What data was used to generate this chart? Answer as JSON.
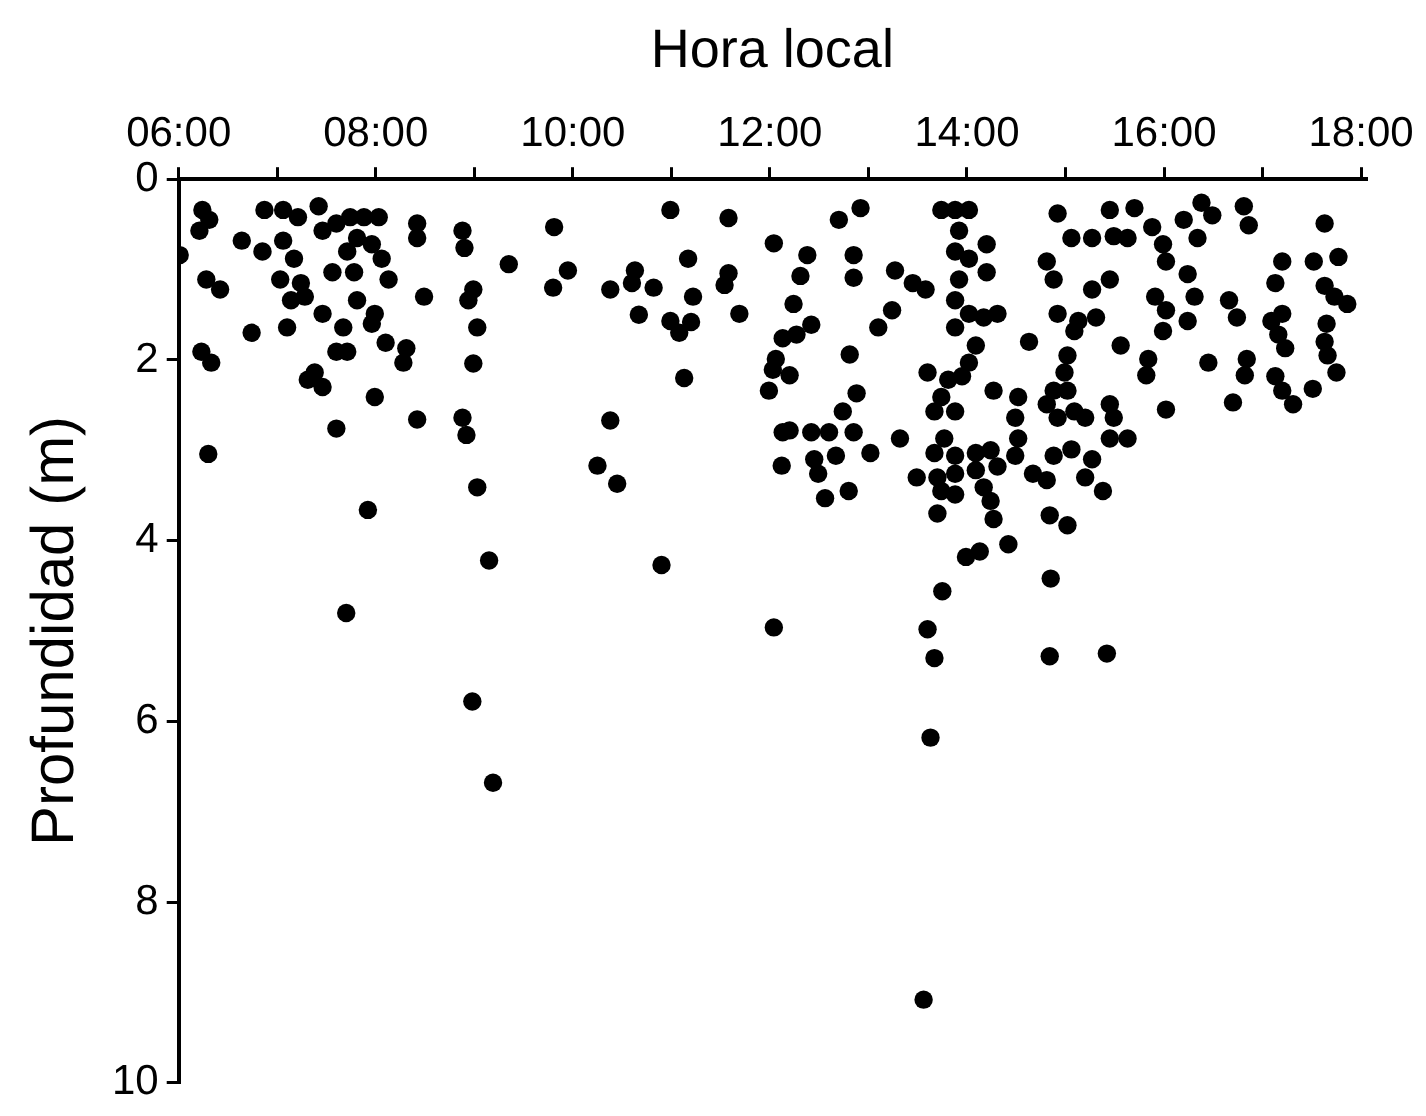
{
  "chart_data": {
    "type": "scatter",
    "xlabel": "Hora local",
    "ylabel": "Profundidad (m)",
    "xlim": [
      6,
      18.05
    ],
    "xticks": [
      {
        "value": 6,
        "label": "06:00"
      },
      {
        "value": 7,
        "label": null
      },
      {
        "value": 8,
        "label": "08:00"
      },
      {
        "value": 9,
        "label": null
      },
      {
        "value": 10,
        "label": "10:00"
      },
      {
        "value": 11,
        "label": null
      },
      {
        "value": 12,
        "label": "12:00"
      },
      {
        "value": 13,
        "label": null
      },
      {
        "value": 14,
        "label": "14:00"
      },
      {
        "value": 15,
        "label": null
      },
      {
        "value": 16,
        "label": "16:00"
      },
      {
        "value": 17,
        "label": null
      },
      {
        "value": 18,
        "label": "18:00"
      }
    ],
    "ylim": [
      10,
      0
    ],
    "yticks": [
      0,
      2,
      4,
      6,
      8,
      10
    ],
    "grid": false,
    "legend": false,
    "marker": "circle",
    "color": "#000000",
    "x": [
      6.01,
      6.24,
      6.31,
      6.21,
      6.28,
      6.42,
      6.23,
      6.33,
      6.3,
      6.87,
      7.06,
      7.21,
      7.42,
      6.64,
      6.85,
      7.06,
      7.17,
      7.46,
      7.6,
      7.74,
      7.88,
      8.03,
      7.81,
      7.96,
      7.71,
      8.06,
      7.03,
      7.24,
      7.56,
      7.78,
      8.13,
      7.14,
      7.28,
      7.1,
      7.46,
      7.67,
      7.81,
      7.99,
      7.96,
      6.74,
      7.6,
      7.71,
      8.1,
      8.31,
      8.28,
      7.38,
      7.31,
      7.46,
      7.99,
      7.6,
      7.92,
      7.7,
      8.42,
      8.42,
      8.88,
      8.9,
      8.49,
      8.99,
      8.94,
      9.03,
      8.99,
      8.42,
      8.88,
      8.92,
      9.03,
      9.15,
      8.98,
      9.19,
      9.81,
      9.35,
      9.95,
      9.8,
      10.38,
      10.63,
      10.6,
      10.82,
      10.67,
      10.99,
      11.17,
      11.22,
      10.99,
      11.08,
      11.2,
      11.13,
      11.58,
      11.58,
      11.54,
      11.69,
      12.04,
      10.38,
      10.25,
      10.45,
      10.9,
      12.13,
      12.03,
      11.99,
      12.13,
      12.12,
      12.04,
      13.6,
      13.75,
      13.67,
      14.84,
      15.42,
      14.85,
      13.63,
      13.56,
      12.7,
      12.92,
      12.38,
      12.31,
      12.85,
      12.85,
      12.24,
      12.42,
      12.27,
      12.06,
      12.2,
      12.81,
      13.27,
      13.45,
      13.58,
      13.24,
      13.1,
      12.88,
      12.74,
      12.2,
      12.42,
      12.6,
      12.85,
      12.45,
      12.67,
      12.49,
      13.02,
      12.56,
      12.8,
      13.32,
      13.74,
      13.88,
      14.02,
      13.92,
      13.88,
      14.02,
      14.2,
      13.92,
      14.2,
      13.88,
      14.02,
      13.88,
      14.17,
      14.31,
      14.09,
      14.02,
      13.6,
      13.81,
      13.95,
      13.74,
      13.88,
      13.67,
      14.27,
      13.77,
      13.67,
      13.88,
      14.09,
      14.24,
      13.49,
      13.7,
      13.88,
      14.09,
      14.31,
      13.74,
      13.88,
      14.17,
      14.24,
      13.7,
      14.27,
      13.99,
      14.13,
      14.42,
      14.63,
      14.52,
      14.49,
      14.52,
      14.49,
      14.67,
      14.81,
      14.88,
      15.06,
      15.27,
      15.2,
      15.38,
      14.84,
      15.02,
      14.92,
      15.45,
      15.7,
      15.06,
      15.27,
      15.49,
      15.63,
      14.81,
      14.88,
      15.45,
      15.27,
      14.92,
      15.13,
      15.31,
      15.09,
      15.56,
      15.02,
      14.99,
      14.88,
      15.02,
      14.81,
      15.09,
      15.2,
      14.92,
      15.45,
      15.49,
      15.45,
      15.63,
      15.84,
      15.82,
      16.02,
      15.88,
      15.99,
      16.02,
      16.2,
      16.38,
      16.49,
      16.34,
      16.81,
      16.86,
      16.24,
      15.91,
      16.02,
      16.24,
      16.31,
      15.99,
      16.66,
      16.74,
      16.45,
      16.84,
      16.82,
      16.7,
      17.2,
      17.13,
      17.09,
      17.2,
      17.16,
      17.23,
      17.13,
      17.2,
      17.31,
      17.51,
      17.63,
      17.52,
      17.77,
      17.63,
      17.86,
      17.73,
      17.65,
      17.63,
      17.66,
      17.75
    ],
    "values": [
      0.84,
      0.34,
      0.45,
      0.57,
      1.11,
      1.22,
      1.91,
      2.03,
      3.04,
      0.34,
      0.34,
      0.42,
      0.3,
      0.68,
      0.8,
      0.68,
      0.88,
      0.57,
      0.49,
      0.42,
      0.42,
      0.42,
      0.65,
      0.72,
      0.8,
      0.88,
      1.11,
      1.15,
      1.03,
      1.03,
      1.11,
      1.34,
      1.3,
      1.64,
      1.49,
      1.64,
      1.34,
      1.49,
      1.6,
      1.7,
      1.91,
      1.91,
      1.81,
      1.87,
      2.03,
      2.14,
      2.22,
      2.3,
      2.41,
      2.76,
      3.66,
      4.8,
      0.49,
      0.65,
      0.57,
      0.76,
      1.3,
      1.22,
      1.34,
      1.64,
      2.04,
      2.66,
      2.64,
      2.83,
      3.41,
      4.22,
      5.78,
      6.68,
      0.53,
      0.94,
      1.01,
      1.2,
      1.22,
      1.01,
      1.15,
      1.2,
      1.5,
      0.34,
      0.88,
      1.3,
      1.57,
      1.7,
      1.58,
      2.2,
      0.43,
      1.04,
      1.17,
      1.49,
      0.71,
      2.67,
      3.17,
      3.37,
      4.27,
      1.76,
      2.11,
      2.34,
      2.8,
      3.17,
      4.96,
      4.98,
      4.56,
      5.3,
      5.28,
      5.25,
      4.42,
      6.18,
      9.08,
      0.45,
      0.32,
      0.84,
      1.07,
      0.84,
      1.09,
      1.38,
      1.61,
      1.72,
      1.99,
      2.17,
      1.94,
      1.01,
      1.15,
      1.22,
      1.45,
      1.64,
      2.37,
      2.57,
      2.78,
      2.8,
      2.8,
      2.8,
      3.1,
      3.06,
      3.26,
      3.03,
      3.53,
      3.45,
      2.87,
      0.34,
      0.34,
      0.34,
      0.57,
      0.8,
      0.88,
      0.72,
      1.11,
      1.03,
      1.34,
      1.49,
      1.64,
      1.53,
      1.49,
      1.84,
      2.03,
      2.14,
      2.22,
      2.18,
      2.41,
      2.57,
      2.57,
      2.34,
      2.87,
      3.03,
      3.06,
      3.03,
      3.0,
      3.3,
      3.3,
      3.26,
      3.22,
      3.18,
      3.45,
      3.49,
      3.41,
      3.56,
      3.7,
      3.76,
      4.18,
      4.12,
      4.04,
      1.8,
      2.41,
      2.64,
      2.87,
      3.06,
      3.26,
      3.33,
      3.06,
      2.99,
      3.1,
      3.3,
      3.45,
      3.72,
      3.83,
      0.38,
      0.34,
      0.32,
      0.65,
      0.65,
      0.63,
      0.65,
      0.91,
      1.11,
      1.11,
      1.22,
      1.49,
      1.57,
      1.53,
      1.68,
      1.84,
      1.95,
      2.14,
      2.34,
      2.34,
      2.49,
      2.57,
      2.64,
      2.64,
      2.49,
      2.64,
      2.87,
      2.87,
      1.99,
      2.17,
      2.55,
      0.53,
      0.72,
      0.91,
      0.45,
      0.26,
      0.4,
      0.65,
      0.3,
      0.51,
      1.05,
      1.3,
      1.45,
      1.57,
      1.3,
      1.68,
      1.34,
      1.53,
      2.03,
      1.99,
      2.17,
      2.47,
      0.91,
      1.15,
      1.57,
      1.49,
      1.72,
      1.87,
      2.18,
      2.34,
      2.49,
      2.32,
      0.49,
      0.91,
      0.86,
      1.18,
      1.38,
      1.3,
      1.6,
      1.8,
      1.95,
      2.14
    ]
  }
}
